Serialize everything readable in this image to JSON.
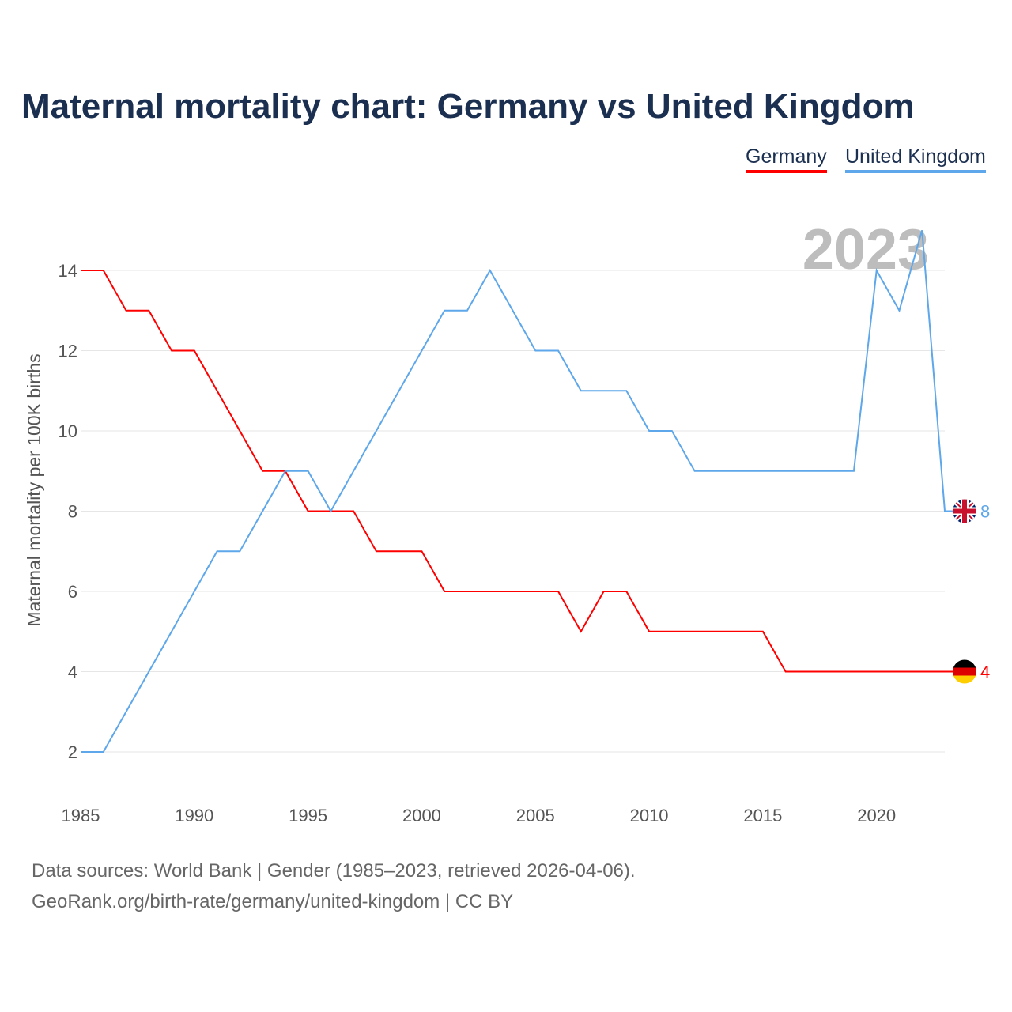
{
  "chart_data": {
    "type": "line",
    "title": "Maternal mortality chart: Germany vs United Kingdom",
    "xlabel": "",
    "ylabel": "Maternal mortality per 100K births",
    "xlim": [
      1985,
      2023
    ],
    "ylim": [
      2,
      14
    ],
    "x_ticks": [
      1985,
      1990,
      1995,
      2000,
      2005,
      2010,
      2015,
      2020
    ],
    "y_ticks": [
      2,
      4,
      6,
      8,
      10,
      12,
      14
    ],
    "grid": true,
    "legend_position": "top-right",
    "year_watermark": "2023",
    "x": [
      1985,
      1986,
      1987,
      1988,
      1989,
      1990,
      1991,
      1992,
      1993,
      1994,
      1995,
      1996,
      1997,
      1998,
      1999,
      2000,
      2001,
      2002,
      2003,
      2004,
      2005,
      2006,
      2007,
      2008,
      2009,
      2010,
      2011,
      2012,
      2013,
      2014,
      2015,
      2016,
      2017,
      2018,
      2019,
      2020,
      2021,
      2022,
      2023
    ],
    "series": [
      {
        "name": "Germany",
        "color": "#ff0000",
        "end_label": "4",
        "values": [
          14,
          14,
          13,
          13,
          12,
          12,
          11,
          10,
          9,
          9,
          8,
          8,
          8,
          7,
          7,
          7,
          6,
          6,
          6,
          6,
          6,
          6,
          5,
          6,
          6,
          5,
          5,
          5,
          5,
          5,
          5,
          4,
          4,
          4,
          4,
          4,
          4,
          4,
          4
        ]
      },
      {
        "name": "United Kingdom",
        "color": "#5ea7ea",
        "end_label": "8",
        "values": [
          2,
          2,
          3,
          4,
          5,
          6,
          7,
          7,
          8,
          9,
          9,
          8,
          9,
          10,
          11,
          12,
          13,
          13,
          14,
          13,
          12,
          12,
          11,
          11,
          11,
          10,
          10,
          9,
          9,
          9,
          9,
          9,
          9,
          9,
          9,
          14,
          13,
          15,
          8
        ]
      }
    ]
  },
  "footer": {
    "line1": "Data sources: World Bank | Gender (1985–2023, retrieved 2026-04-06).",
    "line2": "GeoRank.org/birth-rate/germany/united-kingdom | CC BY"
  }
}
